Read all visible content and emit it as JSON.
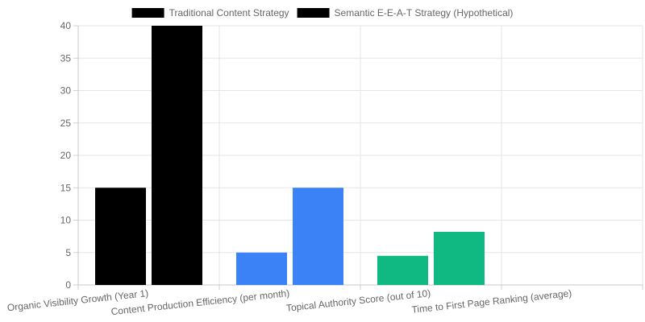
{
  "chart_data": {
    "type": "bar",
    "categories": [
      "Organic Visibility Growth (Year 1)",
      "Content Production Efficiency (per month)",
      "Topical Authority Score (out of 10)",
      "Time to First Page Ranking (average)"
    ],
    "series": [
      {
        "name": "Traditional Content Strategy",
        "values": [
          15,
          5,
          4.5,
          0
        ],
        "legend_color": "#000000",
        "bar_colors": [
          "#000000",
          "#3b82f6",
          "#10b981",
          "#f59e0b"
        ]
      },
      {
        "name": "Semantic E-E-A-T Strategy (Hypothetical)",
        "values": [
          40,
          15,
          8.2,
          0
        ],
        "legend_color": "#000000",
        "bar_colors": [
          "#000000",
          "#3b82f6",
          "#10b981",
          "#f59e0b"
        ]
      }
    ],
    "ylim": [
      0,
      40
    ],
    "yticks": [
      "0",
      "5",
      "10",
      "15",
      "20",
      "25",
      "30",
      "35",
      "40"
    ],
    "grid": true,
    "legend_position": "top",
    "title": "",
    "xlabel": "",
    "ylabel": ""
  }
}
